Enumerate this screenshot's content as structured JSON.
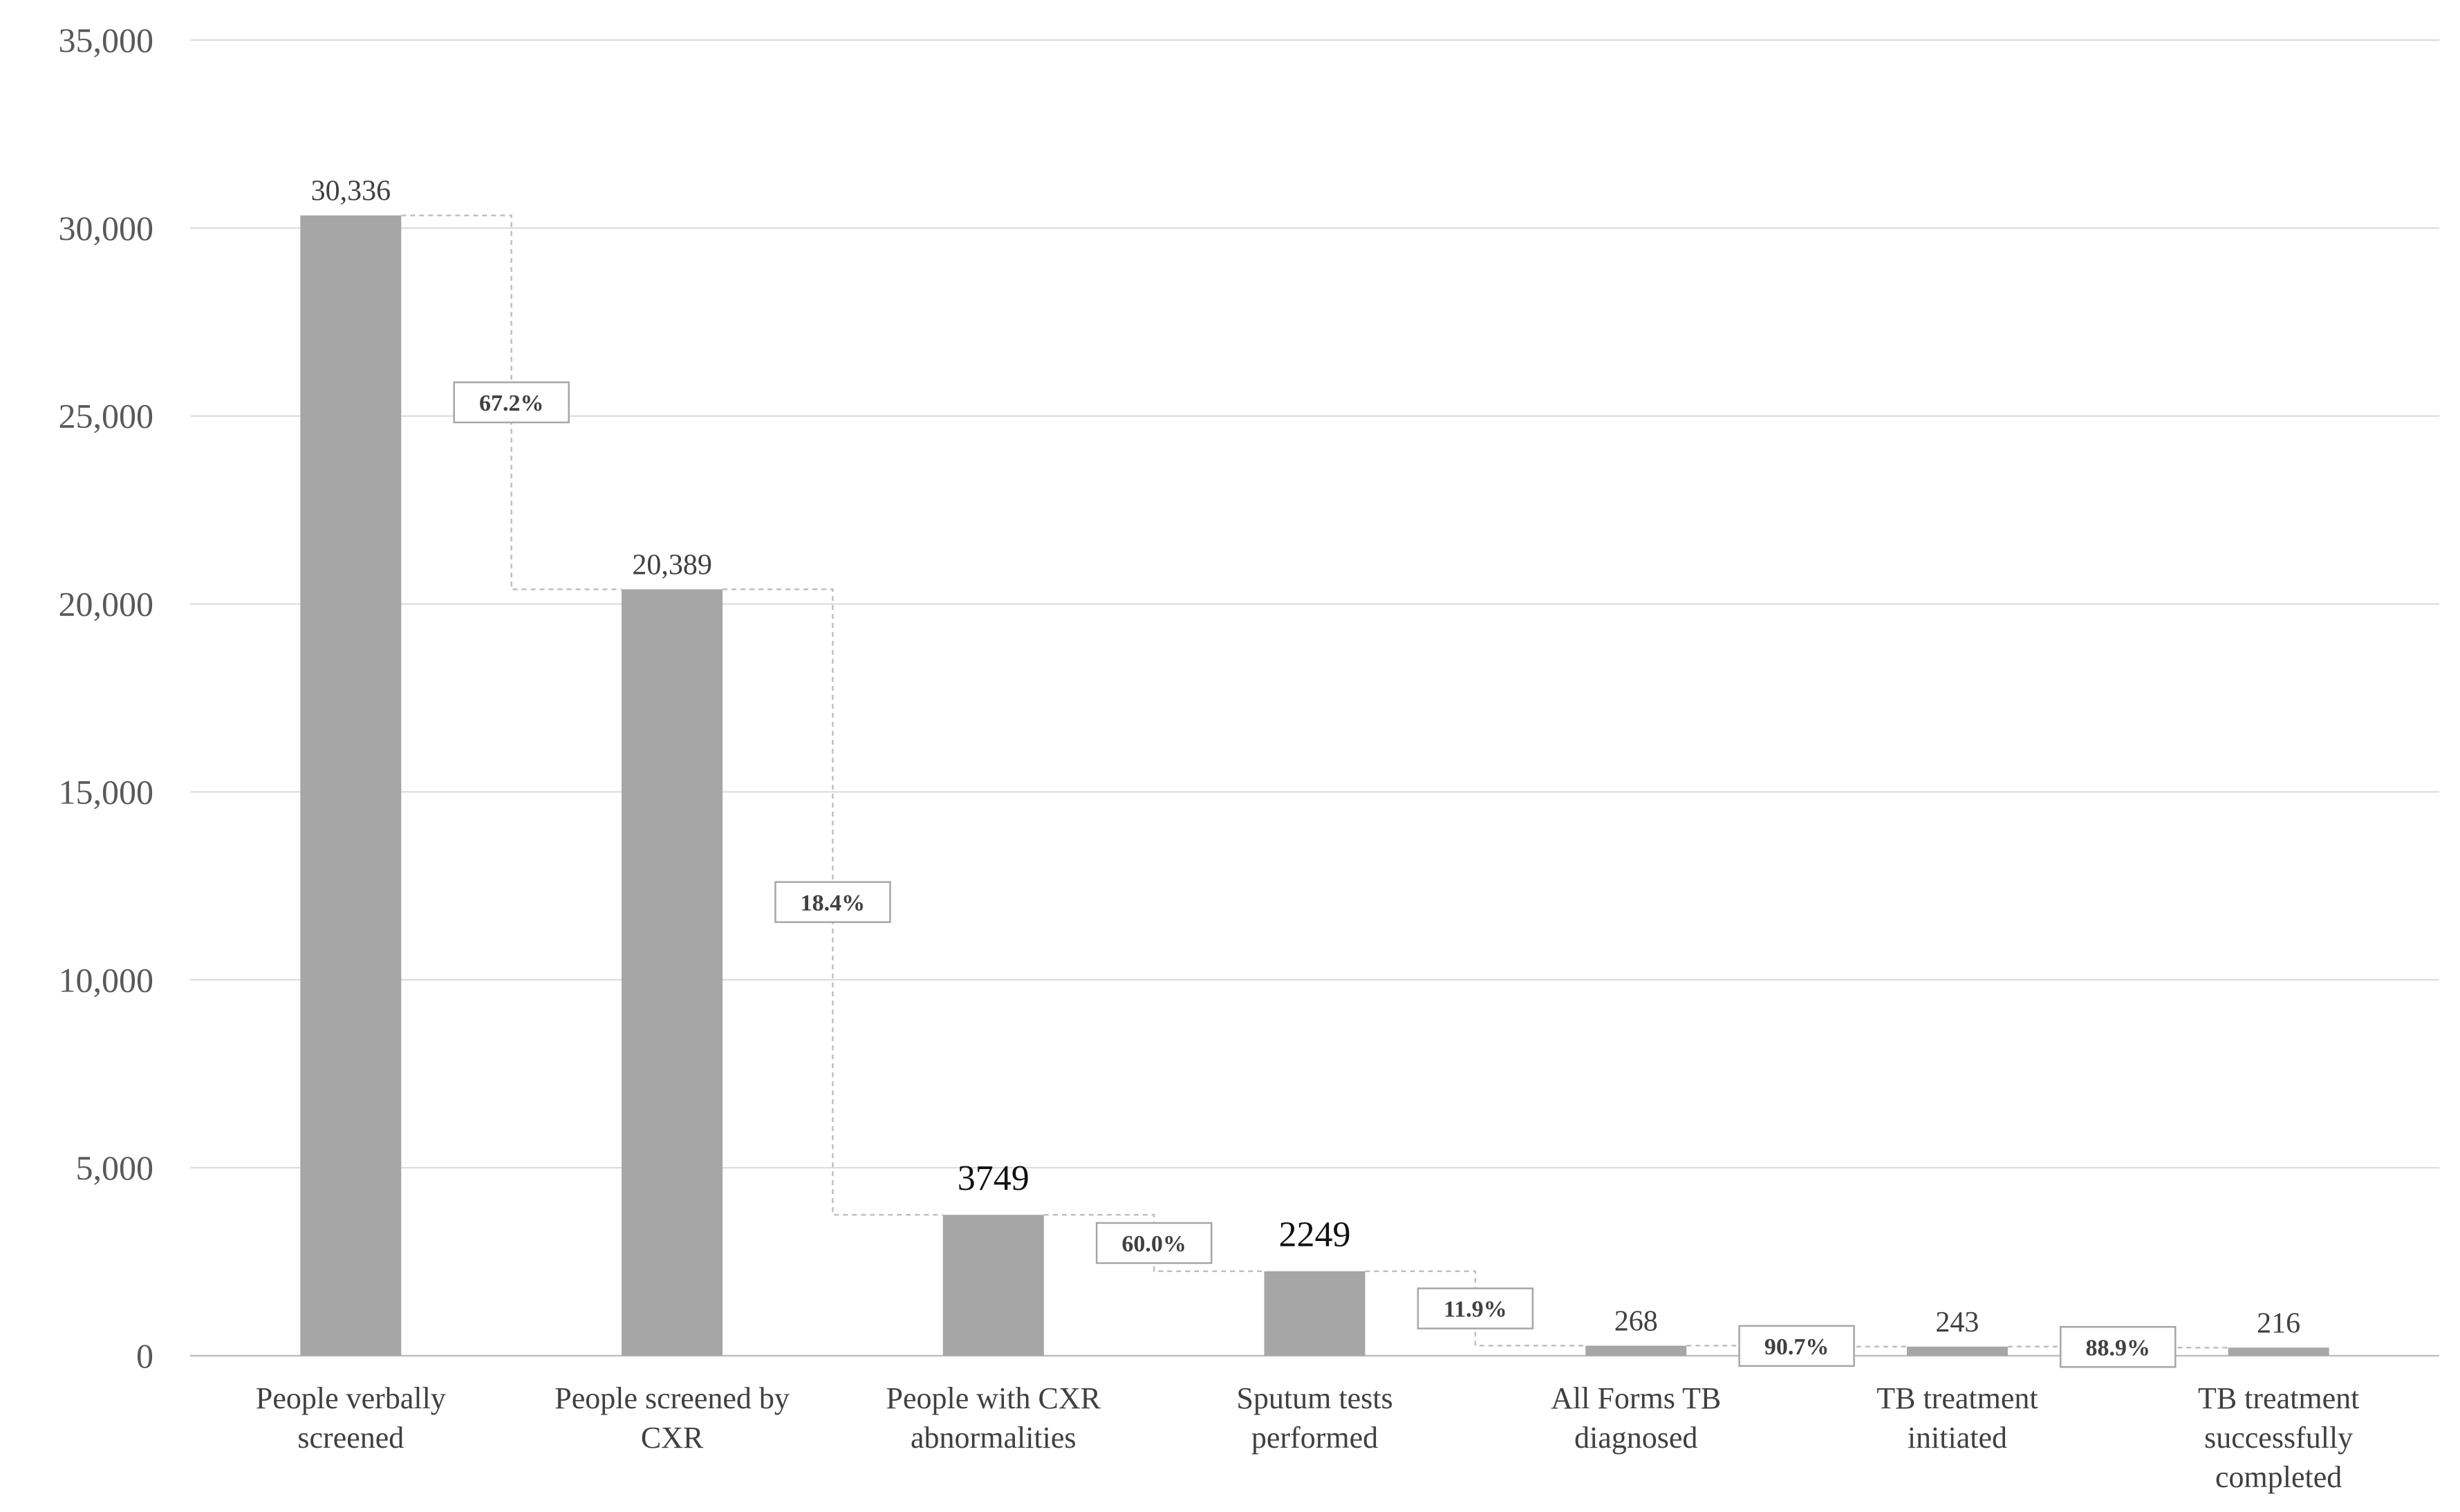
{
  "chart_data": {
    "type": "bar",
    "title": "",
    "xlabel": "",
    "ylabel": "",
    "ylim": [
      0,
      35000
    ],
    "y_ticks": [
      "0",
      "5,000",
      "10,000",
      "15,000",
      "20,000",
      "25,000",
      "30,000",
      "35,000"
    ],
    "y_tick_values": [
      0,
      5000,
      10000,
      15000,
      20000,
      25000,
      30000,
      35000
    ],
    "grid": true,
    "legend": "none",
    "bar_color": "#a6a6a6",
    "categories": [
      [
        "People verbally",
        "screened"
      ],
      [
        "People screened by",
        "CXR"
      ],
      [
        "People with CXR",
        "abnormalities"
      ],
      [
        "Sputum tests",
        "performed"
      ],
      [
        "All Forms TB",
        "diagnosed"
      ],
      [
        "TB treatment",
        "initiated"
      ],
      [
        "TB treatment",
        "successfully",
        "completed"
      ]
    ],
    "values": [
      30336,
      20389,
      3749,
      2249,
      268,
      243,
      216
    ],
    "value_labels": [
      "30,336",
      "20,389",
      "3749",
      "2249",
      "268",
      "243",
      "216"
    ],
    "value_label_emphasis": [
      false,
      false,
      true,
      true,
      false,
      false,
      false
    ],
    "step_percentages": [
      "67.2%",
      "18.4%",
      "60.0%",
      "11.9%",
      "90.7%",
      "88.9%"
    ]
  }
}
